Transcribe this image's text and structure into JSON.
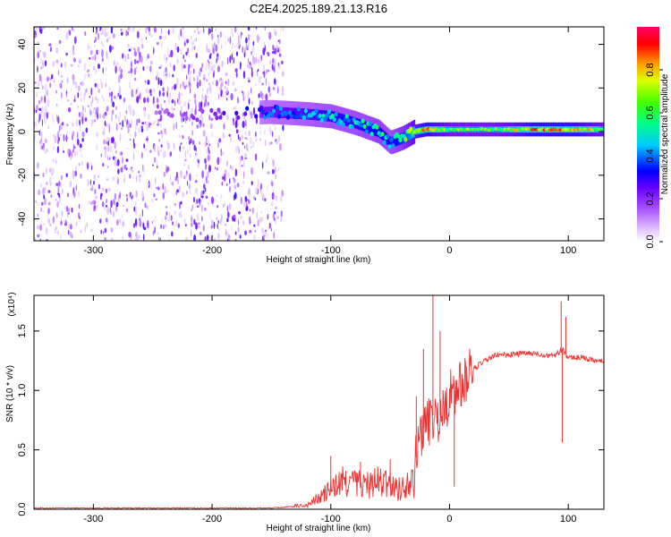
{
  "title": "C2E4.2025.189.21.13.R16",
  "chart_data": [
    {
      "type": "heatmap",
      "xlabel": "Height of straight line (km)",
      "ylabel": "Frequency (Hz)",
      "xlim": [
        -350,
        130
      ],
      "ylim": [
        -50,
        48
      ],
      "xticks": [
        -300,
        -200,
        -100,
        0,
        100
      ],
      "yticks": [
        -40,
        -20,
        0,
        20,
        40
      ],
      "colorbar": {
        "label": "Normalized spectral amplitude",
        "range": [
          0,
          1
        ],
        "ticks": [
          "0.0",
          "0.2",
          "0.4",
          "0.6",
          "0.8"
        ],
        "colors": [
          "#ffffff",
          "#cc99ff",
          "#7a00ff",
          "#0000ff",
          "#00ffff",
          "#00ff00",
          "#ffff00",
          "#ff8800",
          "#ff0000",
          "#ff0066"
        ]
      },
      "noise_region": {
        "x_from": -350,
        "x_to": -150,
        "freq_range": [
          -50,
          48
        ]
      },
      "signal_ridge": {
        "x": [
          -250,
          -200,
          -150,
          -120,
          -100,
          -80,
          -60,
          -50,
          -40,
          -30,
          -20,
          0,
          20,
          40,
          60,
          80,
          100,
          130
        ],
        "freq": [
          7,
          8,
          9,
          8,
          7,
          4,
          0,
          -5,
          -3,
          0,
          1,
          1,
          1,
          1,
          1,
          1,
          1,
          1
        ],
        "amplitude": [
          0.15,
          0.2,
          0.4,
          0.45,
          0.5,
          0.5,
          0.55,
          0.5,
          0.6,
          0.75,
          0.9,
          0.7,
          0.7,
          0.7,
          0.8,
          0.95,
          0.9,
          0.7
        ]
      }
    },
    {
      "type": "line",
      "xlabel": "Height of straight line (km)",
      "ylabel": "SNR (10 * v/v)",
      "multiplier": "(x10⁴)",
      "xlim": [
        -350,
        130
      ],
      "ylim": [
        0,
        1.8
      ],
      "xticks": [
        -300,
        -200,
        -100,
        0,
        100
      ],
      "yticks": [
        "0.0",
        "0.5",
        "1.0",
        "1.5"
      ],
      "color": "#ee3333",
      "series": [
        {
          "x": [
            -350,
            -300,
            -250,
            -200,
            -150,
            -120,
            -110,
            -100,
            -90,
            -80,
            -70,
            -60,
            -50,
            -40,
            -30,
            -25,
            -20,
            -15,
            -10,
            -5,
            0,
            5,
            10,
            15,
            20,
            30,
            40,
            50,
            60,
            70,
            80,
            90,
            95,
            100,
            110,
            120,
            130
          ],
          "y": [
            0.01,
            0.01,
            0.01,
            0.01,
            0.01,
            0.03,
            0.08,
            0.15,
            0.2,
            0.2,
            0.18,
            0.2,
            0.18,
            0.15,
            0.3,
            0.65,
            0.7,
            0.8,
            0.75,
            0.85,
            0.95,
            1.0,
            1.05,
            1.12,
            1.18,
            1.25,
            1.3,
            1.3,
            1.31,
            1.31,
            1.3,
            1.3,
            1.35,
            1.27,
            1.28,
            1.26,
            1.24
          ]
        }
      ],
      "spikes": [
        {
          "x": -14,
          "y": 1.82
        },
        {
          "x": -8,
          "y": 1.5
        },
        {
          "x": -22,
          "y": 1.35
        },
        {
          "x": -28,
          "y": 0.95
        },
        {
          "x": 94,
          "y": 1.75
        },
        {
          "x": 98,
          "y": 1.62
        },
        {
          "x": 95,
          "y": 0.56
        },
        {
          "x": 4,
          "y": 0.19
        },
        {
          "x": -50,
          "y": 0.42
        },
        {
          "x": -100,
          "y": 0.45
        },
        {
          "x": -75,
          "y": 0.4
        }
      ]
    }
  ]
}
